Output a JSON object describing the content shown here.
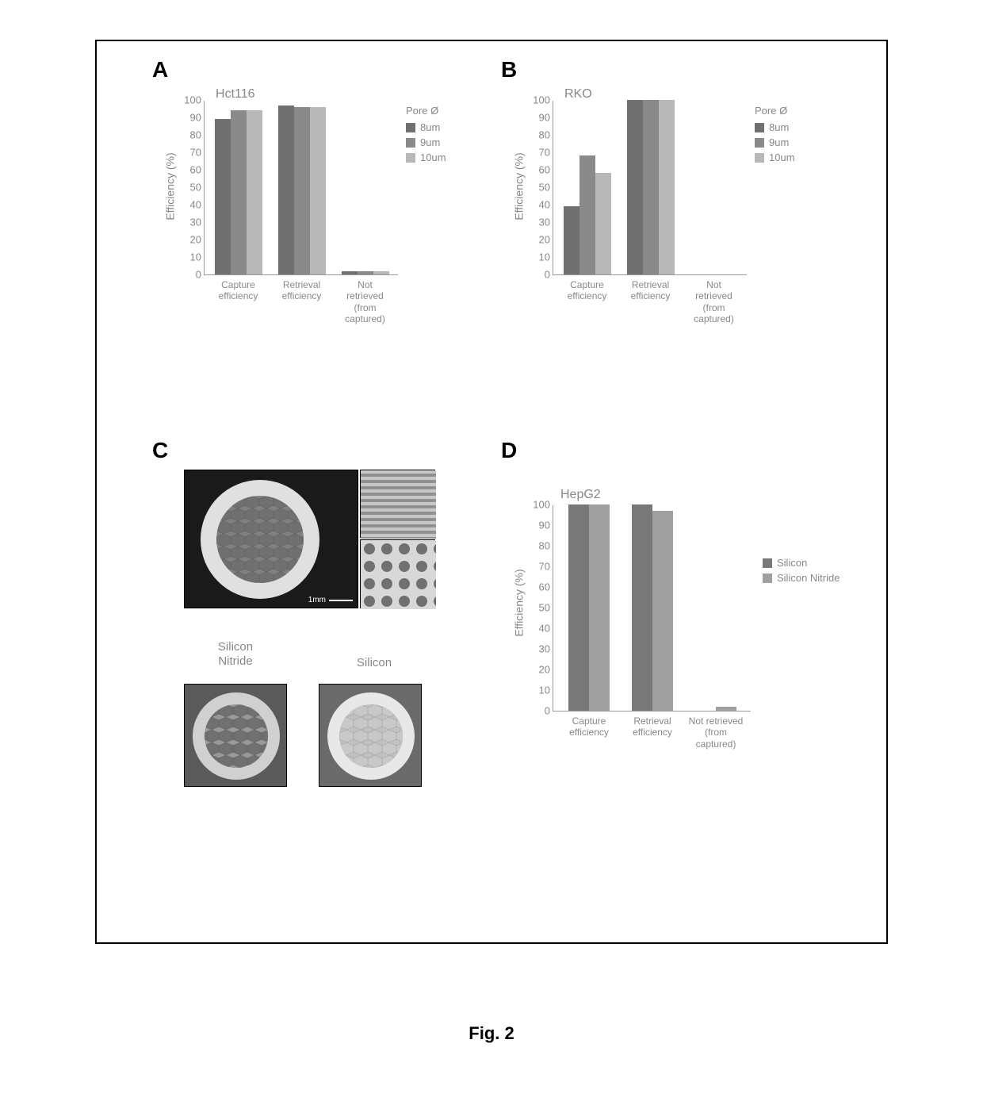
{
  "figure_caption": "Fig. 2",
  "panels": {
    "A": {
      "label": "A",
      "title": "Hct116",
      "ylabel": "Efficiency (%)",
      "ylim": [
        0,
        100
      ],
      "ytick_step": 10,
      "categories": [
        "Capture\nefficiency",
        "Retrieval\nefficiency",
        "Not\nretrieved\n(from\ncaptured)"
      ],
      "legend_title": "Pore Ø",
      "series": [
        {
          "label": "8um",
          "color": "#707070",
          "values": [
            89,
            97,
            2
          ]
        },
        {
          "label": "9um",
          "color": "#8a8a8a",
          "values": [
            94,
            96,
            2
          ]
        },
        {
          "label": "10um",
          "color": "#b8b8b8",
          "values": [
            94,
            96,
            2
          ]
        }
      ]
    },
    "B": {
      "label": "B",
      "title": "RKO",
      "ylabel": "Efficiency (%)",
      "ylim": [
        0,
        100
      ],
      "ytick_step": 10,
      "categories": [
        "Capture\nefficiency",
        "Retrieval\nefficiency",
        "Not\nretrieved\n(from\ncaptured)"
      ],
      "legend_title": "Pore Ø",
      "series": [
        {
          "label": "8um",
          "color": "#707070",
          "values": [
            39,
            100,
            0
          ]
        },
        {
          "label": "9um",
          "color": "#8a8a8a",
          "values": [
            68,
            100,
            0
          ]
        },
        {
          "label": "10um",
          "color": "#b8b8b8",
          "values": [
            58,
            100,
            0
          ]
        }
      ]
    },
    "C": {
      "label": "C",
      "images": {
        "main_scalebar": "1mm",
        "sub_labels": [
          "Silicon\nNitride",
          "Silicon"
        ]
      }
    },
    "D": {
      "label": "D",
      "title": "HepG2",
      "ylabel": "Efficiency (%)",
      "ylim": [
        0,
        100
      ],
      "ytick_step": 10,
      "categories": [
        "Capture\nefficiency",
        "Retrieval\nefficiency",
        "Not retrieved\n(from captured)"
      ],
      "series": [
        {
          "label": "Silicon",
          "color": "#787878",
          "values": [
            100,
            100,
            0
          ]
        },
        {
          "label": "Silicon Nitride",
          "color": "#a0a0a0",
          "values": [
            100,
            97,
            2
          ]
        }
      ]
    }
  }
}
